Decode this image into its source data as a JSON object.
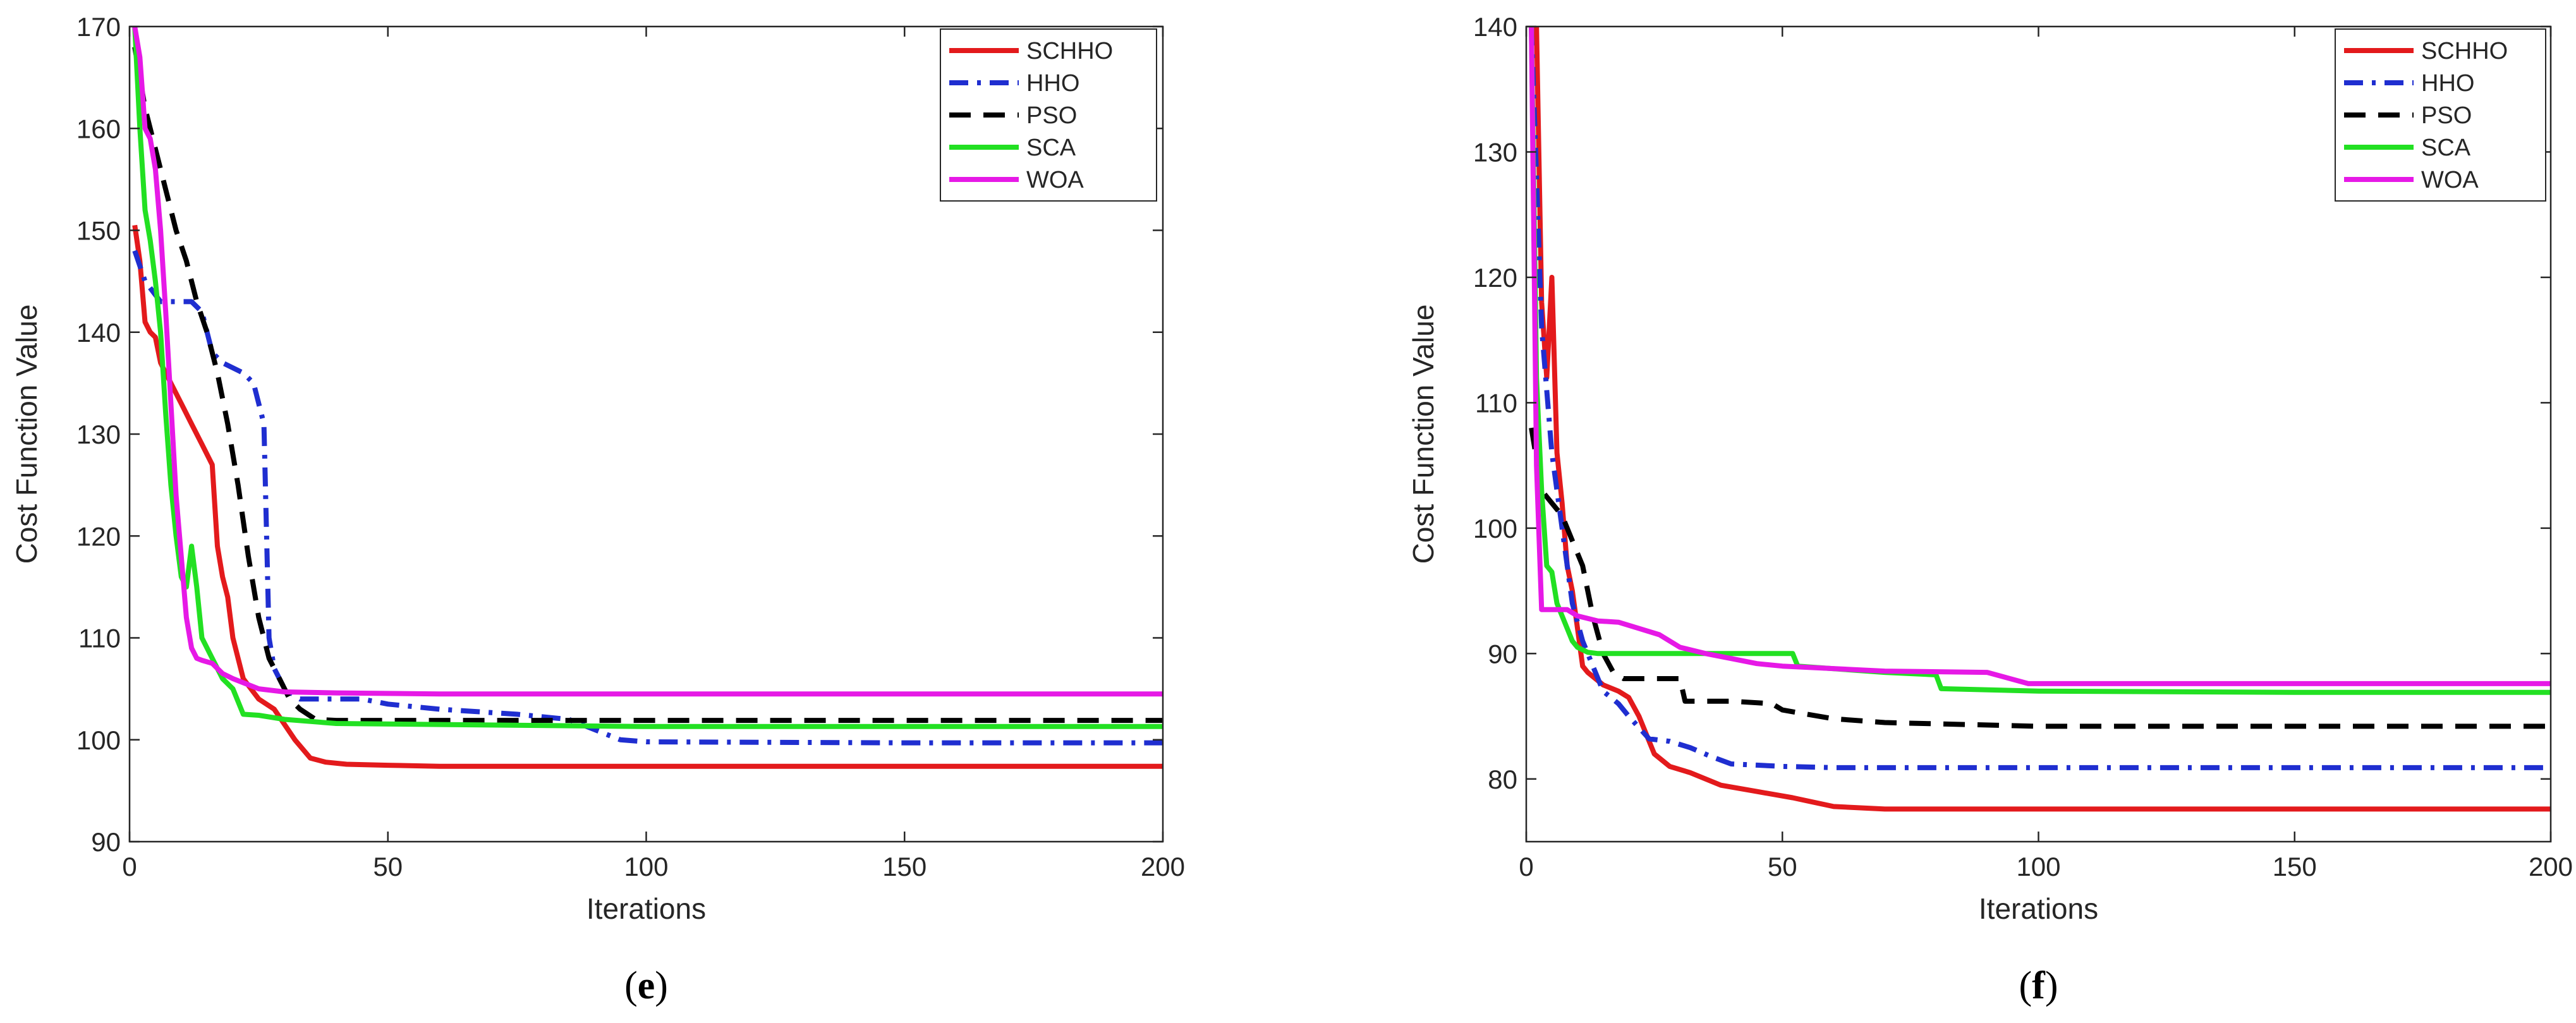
{
  "chart_data": [
    {
      "type": "line",
      "panel": "e",
      "caption": {
        "open": "(",
        "letter": "e",
        "close": ")"
      },
      "title": "",
      "xlabel": "Iterations",
      "ylabel": "Cost Function Value",
      "xlim": [
        0,
        200
      ],
      "ylim": [
        90,
        170
      ],
      "xticks": [
        0,
        50,
        100,
        150,
        200
      ],
      "yticks": [
        90,
        100,
        110,
        120,
        130,
        140,
        150,
        160,
        170
      ],
      "legend_position": "top-right",
      "series": [
        {
          "name": "SCHHO",
          "color": "#e31a1c",
          "dash": "solid",
          "x": [
            1,
            2,
            3,
            4,
            5,
            6,
            7,
            8,
            10,
            12,
            14,
            16,
            17,
            18,
            19,
            20,
            22,
            25,
            28,
            32,
            35,
            38,
            42,
            50,
            60,
            80,
            100,
            150,
            200
          ],
          "y": [
            150.5,
            147,
            141,
            140,
            139.5,
            137,
            136,
            135,
            133,
            131,
            129,
            127,
            119,
            116,
            114,
            110,
            106,
            104,
            103,
            100,
            98.2,
            97.8,
            97.6,
            97.5,
            97.4,
            97.4,
            97.4,
            97.4,
            97.4
          ]
        },
        {
          "name": "HHO",
          "color": "#1f2ed0",
          "dash": "dashdot",
          "x": [
            1,
            3,
            6,
            8,
            10,
            12,
            14,
            16,
            18,
            20,
            22,
            24,
            26,
            27,
            28,
            29,
            30,
            33,
            36,
            45,
            50,
            60,
            75,
            85,
            95,
            100,
            150,
            200
          ],
          "y": [
            148,
            145,
            143,
            143,
            143,
            143,
            142,
            138,
            137,
            136.5,
            136,
            135,
            131,
            110,
            107,
            106,
            105,
            104,
            104,
            104,
            103.5,
            103,
            102.5,
            102,
            100,
            99.8,
            99.7,
            99.7
          ]
        },
        {
          "name": "PSO",
          "color": "#000000",
          "dash": "dashed",
          "x": [
            1,
            3,
            5,
            7,
            9,
            11,
            13,
            15,
            17,
            19,
            21,
            23,
            25,
            27,
            29,
            31,
            33,
            36,
            40,
            50,
            100,
            150,
            200
          ],
          "y": [
            168,
            162,
            158,
            154,
            150,
            147,
            143,
            140,
            136,
            131,
            125,
            118,
            112,
            108,
            106,
            104,
            103,
            102,
            101.9,
            101.9,
            101.9,
            101.9,
            101.9
          ]
        },
        {
          "name": "SCA",
          "color": "#22e022",
          "dash": "solid",
          "x": [
            1,
            2,
            3,
            4,
            5,
            6,
            7,
            8,
            9,
            10,
            11,
            12,
            13,
            14,
            16,
            18,
            20,
            22,
            25,
            30,
            40,
            60,
            100,
            150,
            200
          ],
          "y": [
            170,
            160,
            152,
            149,
            145,
            140,
            132,
            125,
            120,
            116,
            115,
            119,
            115,
            110,
            108,
            106,
            105,
            102.5,
            102.4,
            102,
            101.6,
            101.5,
            101.3,
            101.3,
            101.3
          ]
        },
        {
          "name": "WOA",
          "color": "#e619e6",
          "dash": "solid",
          "x": [
            1,
            2,
            3,
            4,
            5,
            6,
            7,
            8,
            9,
            10,
            11,
            12,
            13,
            14,
            16,
            18,
            20,
            25,
            30,
            40,
            60,
            100,
            150,
            200
          ],
          "y": [
            170,
            167,
            160,
            159,
            156,
            150,
            142,
            133,
            124,
            118,
            112,
            109,
            108,
            107.8,
            107.5,
            106.5,
            106,
            105,
            104.7,
            104.6,
            104.5,
            104.5,
            104.5,
            104.5
          ]
        }
      ]
    },
    {
      "type": "line",
      "panel": "f",
      "caption": {
        "open": "(",
        "letter": "f",
        "close": ")"
      },
      "title": "",
      "xlabel": "Iterations",
      "ylabel": "Cost Function Value",
      "xlim": [
        0,
        200
      ],
      "ylim": [
        75,
        140
      ],
      "xticks": [
        0,
        50,
        100,
        150,
        200
      ],
      "yticks": [
        80,
        90,
        100,
        110,
        120,
        130,
        140
      ],
      "legend_position": "top-right",
      "series": [
        {
          "name": "SCHHO",
          "color": "#e31a1c",
          "dash": "solid",
          "x": [
            2,
            3,
            4,
            5,
            6,
            7,
            8,
            9,
            10,
            11,
            12,
            15,
            18,
            20,
            22,
            25,
            28,
            32,
            38,
            45,
            52,
            60,
            70,
            100,
            150,
            200
          ],
          "y": [
            140,
            118,
            112,
            120,
            106,
            102,
            97,
            95,
            92,
            89,
            88.5,
            87.5,
            87,
            86.5,
            85,
            82,
            81,
            80.5,
            79.5,
            79,
            78.5,
            77.8,
            77.6,
            77.6,
            77.6,
            77.6
          ]
        },
        {
          "name": "HHO",
          "color": "#1f2ed0",
          "dash": "dashdot",
          "x": [
            1,
            3,
            5,
            7,
            9,
            11,
            13,
            15,
            18,
            20,
            24,
            28,
            32,
            36,
            40,
            45,
            50,
            60,
            100,
            150,
            200
          ],
          "y": [
            140,
            116,
            106,
            100,
            94,
            91,
            89,
            87,
            86,
            85,
            83.2,
            83,
            82.5,
            81.8,
            81.2,
            81.1,
            81,
            80.9,
            80.9,
            80.9,
            80.9
          ]
        },
        {
          "name": "PSO",
          "color": "#000000",
          "dash": "dashed",
          "x": [
            1,
            3,
            5,
            7,
            9,
            11,
            13,
            15,
            17,
            19,
            20,
            30,
            31,
            40,
            48,
            50,
            60,
            70,
            100,
            200
          ],
          "y": [
            108,
            103,
            102,
            101,
            99,
            97,
            93,
            90,
            88.5,
            88,
            88,
            88,
            86.2,
            86.2,
            86,
            85.5,
            84.8,
            84.5,
            84.2,
            84.2
          ]
        },
        {
          "name": "SCA",
          "color": "#22e022",
          "dash": "solid",
          "x": [
            1,
            2,
            3,
            4,
            5,
            6,
            7,
            8,
            9,
            10,
            11,
            12,
            14,
            20,
            30,
            40,
            52,
            53,
            70,
            80,
            81,
            100,
            150,
            200
          ],
          "y": [
            140,
            112,
            103,
            97,
            96.5,
            94,
            93,
            92,
            91,
            90.5,
            90.3,
            90.1,
            90,
            90,
            90,
            90,
            90,
            89,
            88.5,
            88.3,
            87.2,
            87,
            86.9,
            86.9
          ]
        },
        {
          "name": "WOA",
          "color": "#e619e6",
          "dash": "solid",
          "x": [
            1,
            2,
            3,
            4,
            5,
            8,
            10,
            14,
            18,
            22,
            26,
            30,
            35,
            40,
            45,
            50,
            60,
            70,
            90,
            98,
            100,
            150,
            200
          ],
          "y": [
            140,
            105,
            93.5,
            93.5,
            93.5,
            93.5,
            93,
            92.6,
            92.5,
            92,
            91.5,
            90.5,
            90,
            89.6,
            89.2,
            89,
            88.8,
            88.6,
            88.5,
            87.6,
            87.6,
            87.6,
            87.6
          ]
        }
      ]
    }
  ]
}
